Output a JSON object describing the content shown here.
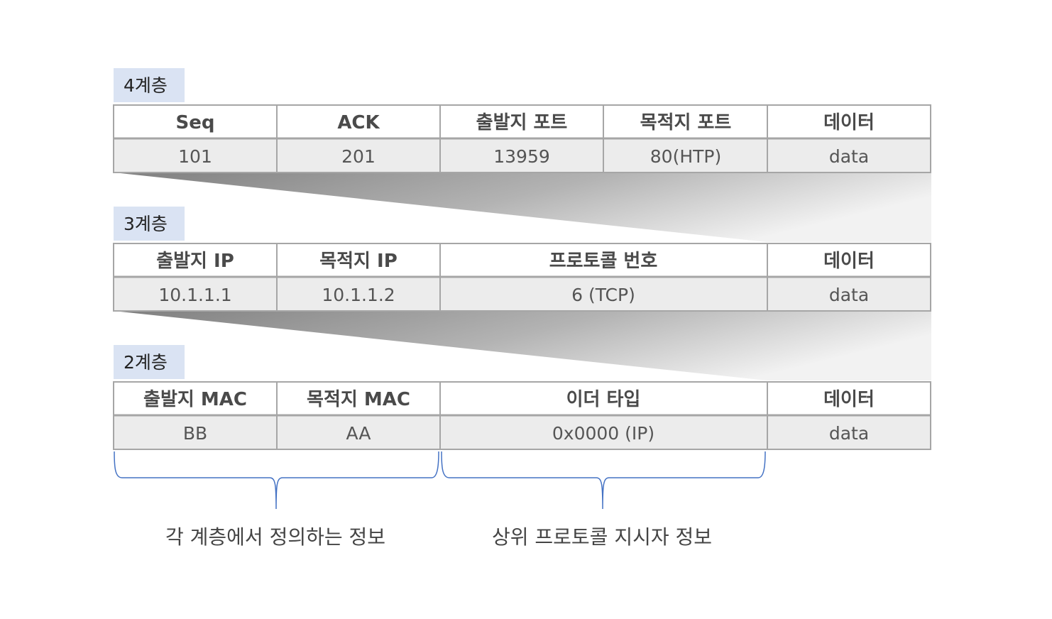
{
  "layers": [
    {
      "label": "4계층",
      "headers": [
        "Seq",
        "ACK",
        "출발지 포트",
        "목적지 포트",
        "데이터"
      ],
      "values": [
        "101",
        "201",
        "13959",
        "80(HTP)",
        "data"
      ]
    },
    {
      "label": "3계층",
      "headers": [
        "출발지 IP",
        "목적지 IP",
        "프로토콜 번호",
        "데이터"
      ],
      "values": [
        "10.1.1.1",
        "10.1.1.2",
        "6 (TCP)",
        "data"
      ]
    },
    {
      "label": "2계층",
      "headers": [
        "출발지 MAC",
        "목적지 MAC",
        "이더 타입",
        "데이터"
      ],
      "values": [
        "BB",
        "AA",
        "0x0000 (IP)",
        "data"
      ]
    }
  ],
  "captions": {
    "left": "각 계층에서 정의하는 정보",
    "right": "상위 프로토콜 지시자 정보"
  },
  "colors": {
    "label_bg": "#dae3f3",
    "header_bg": "#ffffff",
    "value_bg": "#ececec",
    "border": "#a6a6a6",
    "brace": "#4472c4"
  }
}
